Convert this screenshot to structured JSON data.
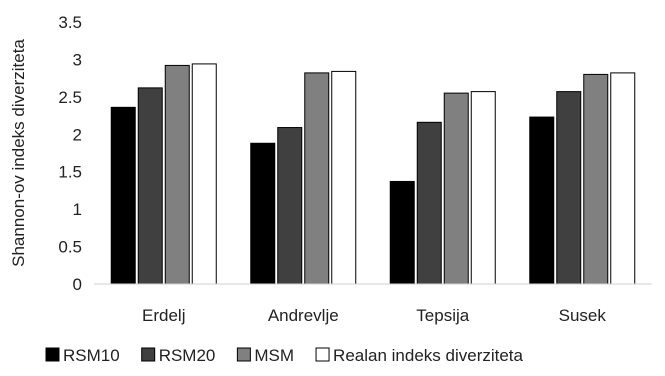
{
  "chart_data": {
    "type": "bar",
    "title": "",
    "xlabel": "",
    "ylabel": "Shannon-ov indeks diverziteta",
    "ylim": [
      0,
      3.5
    ],
    "yticks": [
      0,
      0.5,
      1,
      1.5,
      2,
      2.5,
      3,
      3.5
    ],
    "ytick_labels": [
      "0",
      "0.5",
      "1",
      "1.5",
      "2",
      "2.5",
      "3",
      "3.5"
    ],
    "grid": false,
    "legend_position": "bottom",
    "categories": [
      "Erdelj",
      "Andrevlje",
      "Tepsija",
      "Susek"
    ],
    "series": [
      {
        "name": "RSM10",
        "color": "#000000",
        "values": [
          2.36,
          1.88,
          1.37,
          2.23
        ]
      },
      {
        "name": "RSM20",
        "color": "#404040",
        "values": [
          2.62,
          2.09,
          2.16,
          2.57
        ]
      },
      {
        "name": "MSM",
        "color": "#808080",
        "values": [
          2.92,
          2.82,
          2.55,
          2.8
        ]
      },
      {
        "name": "Realan indeks diverziteta",
        "color": "#ffffff",
        "values": [
          2.94,
          2.84,
          2.57,
          2.82
        ]
      }
    ]
  }
}
